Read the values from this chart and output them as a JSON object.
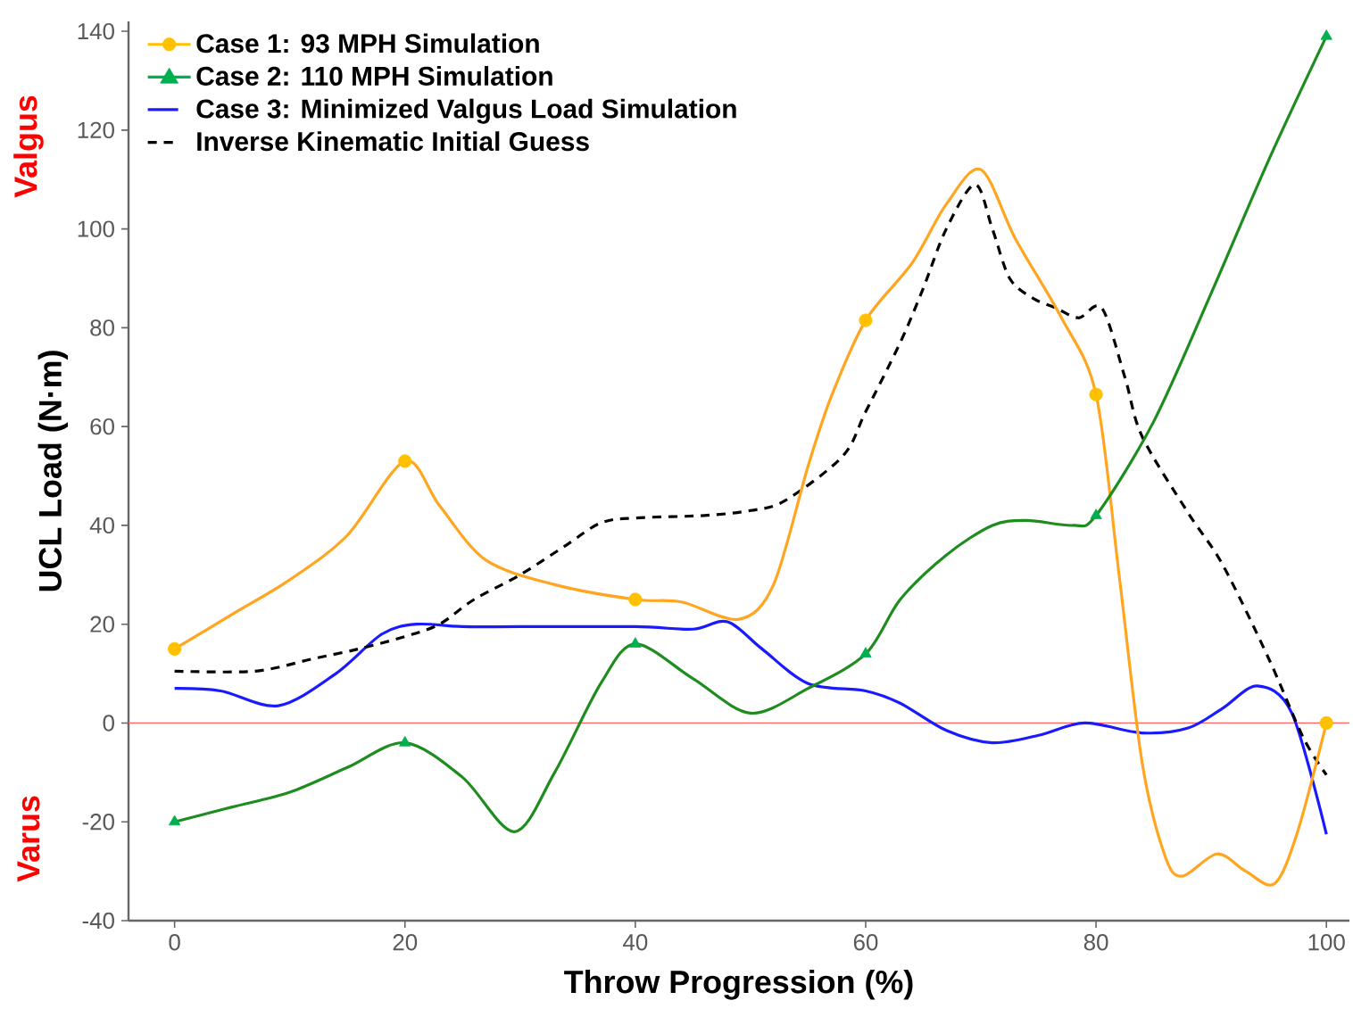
{
  "chart_data": {
    "type": "line",
    "xlabel": "Throw Progression (%)",
    "ylabel": "UCL Load (N·m)",
    "annotations": [
      "Valgus",
      "Varus"
    ],
    "xlim": [
      -4,
      102
    ],
    "ylim": [
      -40,
      142
    ],
    "xticks": [
      0,
      20,
      40,
      60,
      80,
      100
    ],
    "yticks": [
      -40,
      -20,
      0,
      20,
      40,
      60,
      80,
      100,
      120,
      140
    ],
    "grid": false,
    "legend": "top left",
    "ref_lines": [
      {
        "axis": "y",
        "value": 0,
        "color": "#ff6060"
      }
    ],
    "series": [
      {
        "type": "scatter",
        "color": "#ffc000",
        "marker": "circle",
        "name": "Case 1: 93 MPH Simulation",
        "x": [
          0,
          20,
          40,
          60,
          80,
          100
        ],
        "values": [
          15,
          53,
          25,
          81.5,
          66.5,
          0
        ]
      },
      {
        "type": "scatter",
        "color": "#00b050",
        "marker": "triangle",
        "name": "Case 2: 110 MPH Simulation",
        "x": [
          0,
          20,
          40,
          60,
          80,
          100
        ],
        "values": [
          -20,
          -4,
          16,
          14,
          42,
          139
        ]
      },
      {
        "type": "line",
        "color": "#1a1aff",
        "name": "Case 3: Minimized Valgus Load Simulation",
        "x": [
          0,
          4,
          9,
          14,
          18,
          21,
          25,
          30,
          40,
          45,
          48,
          51,
          55,
          60,
          63,
          67,
          71,
          75,
          79,
          84,
          88,
          91,
          94,
          97,
          100
        ],
        "values": [
          7,
          6.5,
          3.5,
          10,
          18,
          20,
          19.5,
          19.5,
          19.5,
          19,
          20.5,
          15,
          8,
          6.5,
          4,
          -1.5,
          -4,
          -2.5,
          0,
          -2,
          -1,
          3,
          7.5,
          2,
          -22.5
        ]
      },
      {
        "type": "line",
        "color": "#000000",
        "line_style": "dashed",
        "name": "Inverse Kinematic Initial Guess",
        "x": [
          0,
          7,
          12,
          16,
          20,
          23,
          26,
          30,
          34,
          37,
          40,
          46,
          50,
          53,
          58,
          60,
          63,
          65,
          67,
          69.5,
          71,
          72.5,
          74.5,
          76.5,
          78.5,
          80.5,
          82.5,
          84,
          88,
          91,
          95,
          98,
          100
        ],
        "values": [
          10.5,
          10.5,
          13,
          15,
          17.5,
          20,
          25,
          30,
          36,
          40.5,
          41.5,
          42,
          43,
          45,
          54,
          63,
          77,
          88,
          100,
          109,
          100,
          90,
          86,
          84,
          82,
          84,
          70,
          58,
          42.5,
          32,
          13,
          -3,
          -10.5
        ]
      },
      {
        "type": "line",
        "color": "#ffa51f",
        "x": [
          0,
          5,
          10,
          15,
          20,
          23,
          27,
          33,
          40,
          44,
          49,
          52,
          55,
          57,
          60,
          64,
          67,
          70,
          73,
          77,
          80,
          82,
          84,
          86,
          87.5,
          90.5,
          93,
          95.5,
          97.5,
          100
        ],
        "values": [
          15,
          22,
          29,
          38,
          53,
          44,
          33,
          28,
          25,
          24.5,
          21,
          28,
          52,
          66,
          81.5,
          93,
          105,
          112,
          98,
          82,
          66.5,
          30,
          -8,
          -27,
          -31,
          -26.5,
          -30,
          -32.5,
          -22,
          0
        ]
      },
      {
        "type": "line",
        "color": "#1e8c1e",
        "x": [
          0,
          5,
          10,
          15,
          20,
          25,
          29.5,
          33,
          37,
          40,
          45,
          50,
          55,
          60,
          63,
          67,
          71,
          74,
          78,
          80,
          85,
          90,
          95,
          100
        ],
        "values": [
          -20,
          -17,
          -14,
          -9,
          -4,
          -11,
          -22,
          -10,
          8,
          16,
          9,
          2,
          7,
          14,
          25,
          34,
          40,
          41,
          40,
          42,
          61,
          87,
          114,
          139
        ]
      }
    ]
  }
}
